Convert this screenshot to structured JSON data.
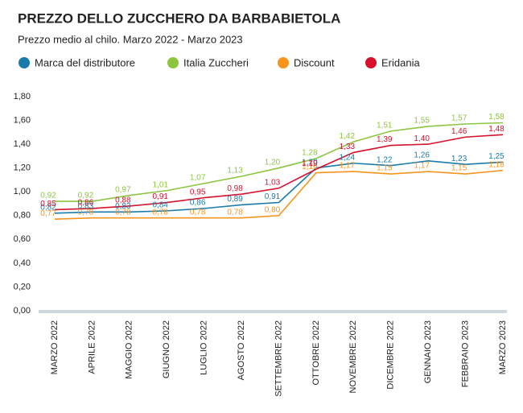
{
  "chart_data": {
    "type": "line",
    "title": "PREZZO DELLO ZUCCHERO DA BARBABIETOLA",
    "subtitle": "Prezzo medio al chilo. Marzo 2022 - Marzo 2023",
    "categories": [
      "MARZO 2022",
      "APRILE 2022",
      "MAGGIO 2022",
      "GIUGNO 2022",
      "LUGLIO 2022",
      "AGOSTO 2022",
      "SETTEMBRE 2022",
      "OTTOBRE 2022",
      "NOVEMBRE 2022",
      "DICEMBRE 2022",
      "GENNAIO 2023",
      "FEBBRAIO 2023",
      "MARZO 2023"
    ],
    "series": [
      {
        "name": "Marca del distributore",
        "color": "#1a7aaa",
        "values": [
          0.82,
          0.83,
          0.83,
          0.84,
          0.86,
          0.89,
          0.91,
          1.2,
          1.24,
          1.22,
          1.26,
          1.23,
          1.25
        ],
        "value_labels": [
          "0,82",
          "0,83",
          "0,83",
          "0,84",
          "0,86",
          "0,89",
          "0,91",
          "1,20",
          "1,24",
          "1,22",
          "1,26",
          "1,23",
          "1,25"
        ]
      },
      {
        "name": "Italia Zuccheri",
        "color": "#8cc63f",
        "values": [
          0.92,
          0.92,
          0.97,
          1.01,
          1.07,
          1.13,
          1.2,
          1.28,
          1.42,
          1.51,
          1.55,
          1.57,
          1.58
        ],
        "value_labels": [
          "0,92",
          "0,92",
          "0,97",
          "1,01",
          "1,07",
          "1,13",
          "1,20",
          "1,28",
          "1,42",
          "1,51",
          "1,55",
          "1,57",
          "1,58"
        ]
      },
      {
        "name": "Discount",
        "color": "#f7941d",
        "values": [
          0.77,
          0.78,
          0.78,
          0.78,
          0.78,
          0.78,
          0.8,
          1.16,
          1.17,
          1.15,
          1.17,
          1.15,
          1.18
        ],
        "value_labels": [
          "0,77",
          "0,78",
          "0,78",
          "0,78",
          "0,78",
          "0,78",
          "0,80",
          "1,16",
          "1,17",
          "1,15",
          "1,17",
          "1,15",
          "1,18"
        ]
      },
      {
        "name": "Eridania",
        "color": "#d7102c",
        "values": [
          0.85,
          0.86,
          0.88,
          0.91,
          0.95,
          0.98,
          1.03,
          1.19,
          1.33,
          1.39,
          1.4,
          1.46,
          1.48
        ],
        "value_labels": [
          "0,85",
          "0,86",
          "0,88",
          "0,91",
          "0,95",
          "0,98",
          "1,03",
          "1,19",
          "1,33",
          "1,39",
          "1,40",
          "1,46",
          "1,48"
        ]
      }
    ],
    "ylim": [
      0,
      1.8
    ],
    "yticks": [
      {
        "value": 0,
        "label": "0,00"
      },
      {
        "value": 0.2,
        "label": "0,20"
      },
      {
        "value": 0.4,
        "label": "0,40"
      },
      {
        "value": 0.6,
        "label": "0,60"
      },
      {
        "value": 0.8,
        "label": "0,80"
      },
      {
        "value": 1.0,
        "label": "1,00"
      },
      {
        "value": 1.2,
        "label": "1,20"
      },
      {
        "value": 1.4,
        "label": "1,40"
      },
      {
        "value": 1.6,
        "label": "1,60"
      },
      {
        "value": 1.8,
        "label": "1,80"
      }
    ],
    "grid": false
  }
}
